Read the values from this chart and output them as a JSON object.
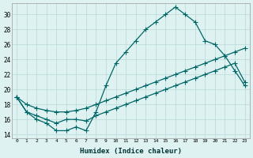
{
  "line1_x": [
    0,
    1,
    2,
    3,
    4,
    5,
    6,
    7,
    8,
    9,
    10,
    11,
    12,
    13,
    14,
    15,
    16,
    17,
    18,
    19,
    20,
    21,
    22,
    23
  ],
  "line1_y": [
    19.0,
    17.0,
    16.0,
    15.5,
    14.5,
    14.5,
    15.0,
    14.5,
    17.0,
    20.5,
    23.5,
    25.0,
    26.5,
    28.0,
    29.0,
    30.0,
    31.0,
    30.0,
    29.0,
    26.5,
    26.0,
    24.5,
    22.5,
    20.5
  ],
  "line2_x": [
    0,
    1,
    2,
    3,
    4,
    5,
    6,
    7,
    8,
    9,
    10,
    11,
    12,
    13,
    14,
    15,
    16,
    17,
    18,
    19,
    20,
    21,
    22,
    23
  ],
  "line2_y": [
    19.0,
    18.0,
    17.5,
    17.2,
    17.0,
    17.0,
    17.2,
    17.5,
    18.0,
    18.5,
    19.0,
    19.5,
    20.0,
    20.5,
    21.0,
    21.5,
    22.0,
    22.5,
    23.0,
    23.5,
    24.0,
    24.5,
    25.0,
    25.5
  ],
  "line3_x": [
    0,
    1,
    2,
    3,
    4,
    5,
    6,
    7,
    8,
    9,
    10,
    11,
    12,
    13,
    14,
    15,
    16,
    17,
    18,
    19,
    20,
    21,
    22,
    23
  ],
  "line3_y": [
    19.0,
    17.0,
    16.5,
    16.0,
    15.5,
    16.0,
    16.0,
    15.8,
    16.5,
    17.0,
    17.5,
    18.0,
    18.5,
    19.0,
    19.5,
    20.0,
    20.5,
    21.0,
    21.5,
    22.0,
    22.5,
    23.0,
    23.5,
    21.0
  ],
  "line_color": "#006666",
  "bg_color": "#dff2f2",
  "grid_color": "#b8d8d8",
  "xlabel": "Humidex (Indice chaleur)",
  "ylim": [
    13.5,
    31.5
  ],
  "xlim": [
    -0.5,
    23.5
  ],
  "yticks": [
    14,
    16,
    18,
    20,
    22,
    24,
    26,
    28,
    30
  ],
  "xticks": [
    0,
    1,
    2,
    3,
    4,
    5,
    6,
    7,
    8,
    9,
    10,
    11,
    12,
    13,
    14,
    15,
    16,
    17,
    18,
    19,
    20,
    21,
    22,
    23
  ]
}
